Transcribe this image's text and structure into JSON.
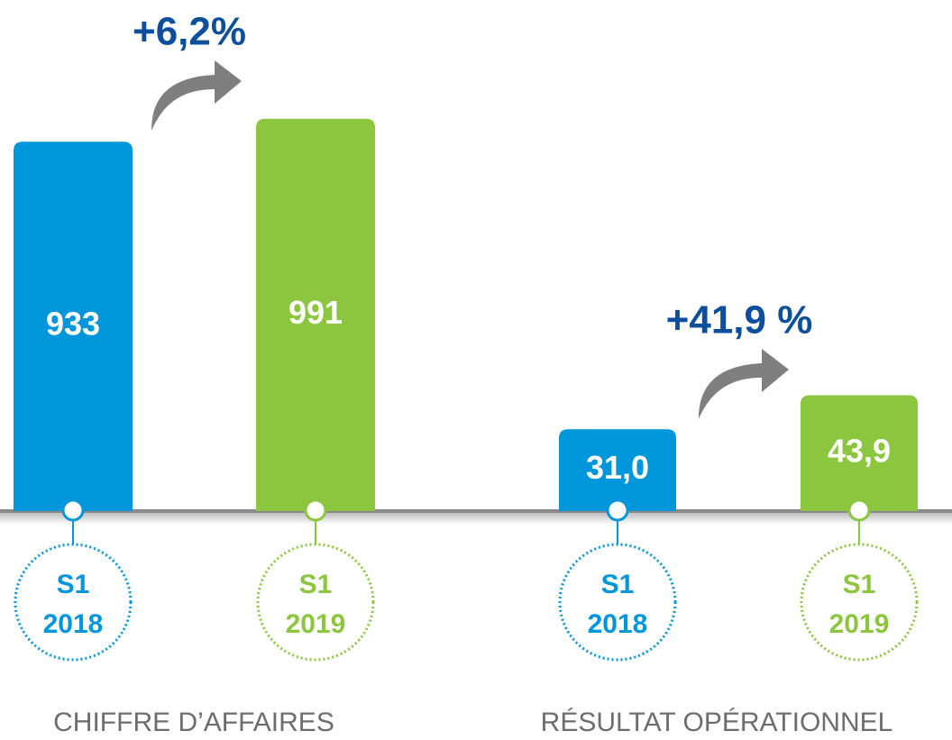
{
  "chart_data": [
    {
      "type": "bar",
      "title": "CHIFFRE D’AFFAIRES",
      "annotation": "+6,2%",
      "categories": [
        [
          "S1",
          "2018"
        ],
        [
          "S1",
          "2019"
        ]
      ],
      "values": [
        933,
        991
      ],
      "colors": [
        "#0096dc",
        "#8cc63f"
      ],
      "ylim": [
        0,
        1200
      ]
    },
    {
      "type": "bar",
      "title": "RÉSULTAT OPÉRATIONNEL",
      "annotation": "+41,9 %",
      "categories": [
        [
          "S1",
          "2018"
        ],
        [
          "S1",
          "2019"
        ]
      ],
      "values": [
        31.0,
        43.9
      ],
      "value_labels": [
        "31,0",
        "43,9"
      ],
      "colors": [
        "#0096dc",
        "#8cc63f"
      ],
      "ylim": [
        0,
        180
      ]
    }
  ]
}
